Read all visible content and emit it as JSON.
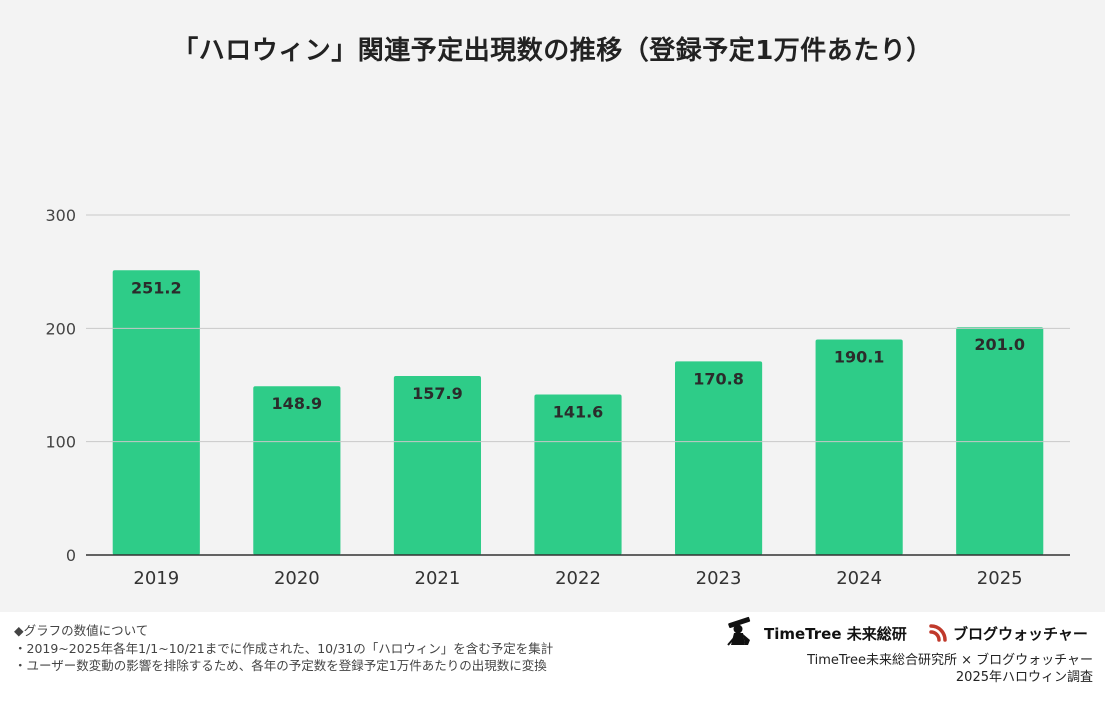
{
  "chart_data": {
    "type": "bar",
    "title": "「ハロウィン」関連予定出現数の推移（登録予定1万件あたり）",
    "categories": [
      "2019",
      "2020",
      "2021",
      "2022",
      "2023",
      "2024",
      "2025"
    ],
    "values": [
      251.2,
      148.9,
      157.9,
      141.6,
      170.8,
      190.1,
      201.0
    ],
    "value_labels": [
      "251.2",
      "148.9",
      "157.9",
      "141.6",
      "170.8",
      "190.1",
      "201.0"
    ],
    "y_ticks": [
      "0",
      "100",
      "200",
      "300"
    ],
    "ylim": [
      0,
      300
    ],
    "xlabel": "",
    "ylabel": "",
    "grid": true,
    "bar_color": "#2ecc88"
  },
  "notes": {
    "heading": "◆グラフの数値について",
    "line1": "・2019~2025年各年1/1~10/21までに作成された、10/31の「ハロウィン」を含む予定を集計",
    "line2": "・ユーザー数変動の影響を排除するため、各年の予定数を登録予定1万件あたりの出現数に変換"
  },
  "branding": {
    "timetree_logo": "TimeTree 未来総研",
    "timetree_icon": "telescope-person-icon",
    "blog_logo": "ブログウォッチャー",
    "blog_icon": "signal-arcs-icon",
    "blog_color": "#c0392b"
  },
  "credit": {
    "line1": "TimeTree未来総合研究所 × ブログウォッチャー",
    "line2": "2025年ハロウィン調査"
  }
}
